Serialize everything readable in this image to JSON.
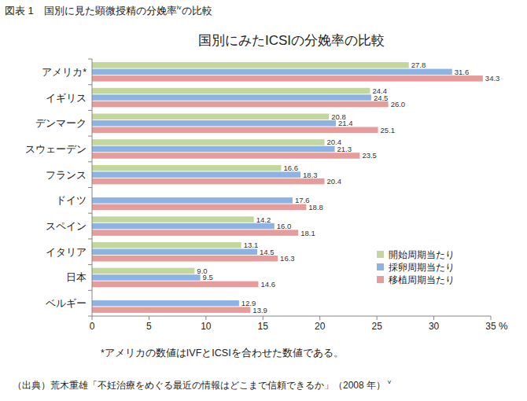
{
  "header": {
    "caption": "図表 1　国別に見た顕微授精の分娩率",
    "caption_sup": "iv",
    "caption_end": "の比較"
  },
  "chart_data": {
    "type": "bar",
    "title": "国別にみたICSIの分娩率の比較",
    "orientation": "horizontal",
    "categories": [
      "アメリカ*",
      "イギリス",
      "デンマーク",
      "スウェーデン",
      "フランス",
      "ドイツ",
      "スペイン",
      "イタリア",
      "日本",
      "ベルギー"
    ],
    "series": [
      {
        "name": "開始周期当たり",
        "color": "#c3d69b",
        "values": [
          27.8,
          24.4,
          20.8,
          20.4,
          16.6,
          null,
          14.2,
          13.1,
          9.0,
          null
        ],
        "value_labels": [
          "27.8",
          "24.4",
          "20.8",
          "20.4",
          "16.6",
          null,
          "14.2",
          "13.1",
          "9.0",
          null
        ]
      },
      {
        "name": "採卵周期当たり",
        "color": "#8db3e2",
        "values": [
          31.6,
          24.5,
          21.4,
          21.3,
          18.3,
          17.6,
          16.0,
          14.5,
          9.5,
          12.9
        ],
        "value_labels": [
          "31.6",
          "24.5",
          "21.4",
          "21.3",
          "18.3",
          "17.6",
          "16.0",
          "14.5",
          "9.5",
          "12.9"
        ]
      },
      {
        "name": "移植周期当たり",
        "color": "#e59c9a",
        "values": [
          34.3,
          26.0,
          25.1,
          23.5,
          20.4,
          18.8,
          18.1,
          16.3,
          14.6,
          13.9
        ],
        "value_labels": [
          "34.3",
          "26.0",
          "25.1",
          "23.5",
          "20.4",
          "18.8",
          "18.1",
          "16.3",
          "14.6",
          "13.9"
        ]
      }
    ],
    "xlim": [
      0,
      35
    ],
    "xticks": [
      0,
      5,
      10,
      15,
      20,
      25,
      30,
      35
    ],
    "xlabel": "%",
    "data_labels": true,
    "legend": "lower right",
    "grid": false,
    "annotations": [
      "*アメリカの数値はIVFとICSIを合わせた数値である。"
    ]
  },
  "footer": {
    "source": "（出典）荒木重雄「不妊治療をめぐる最近の情報はどこまで信頼できるか」（2008 年）",
    "source_sup": "v"
  }
}
